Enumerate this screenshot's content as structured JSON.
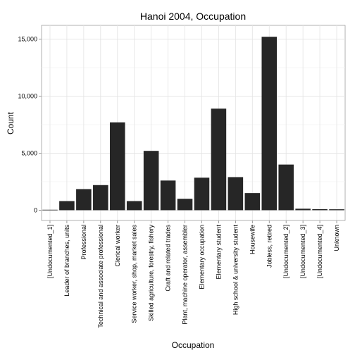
{
  "chart_data": {
    "type": "bar",
    "title": "Hanoi 2004, Occupation",
    "xlabel": "Occupation",
    "ylabel": "Count",
    "ylim": [
      -900,
      16200
    ],
    "yticks": [
      0,
      5000,
      10000,
      15000
    ],
    "ytick_labels": [
      "0",
      "5,000",
      "10,000",
      "15,000"
    ],
    "grid": true,
    "bar_color": "#262626",
    "categories": [
      "[Undocumented_1]",
      "Leader of branches, units",
      "Professional",
      "Technical and associate professional",
      "Clerical worker",
      "Service worker, shop, market sales",
      "Skilled agriculture, forestry, fishery",
      "Craft and related trades",
      "Plant, machine operator, assembler",
      "Elementary occupation",
      "Elementary student",
      "High school & university student",
      "Housewife",
      "Jobless, retired",
      "[Undocumented_2]",
      "[Undocumented_3]",
      "[Undocumented_4]",
      "Unknown"
    ],
    "values": [
      40,
      800,
      1850,
      2200,
      7700,
      800,
      5200,
      2600,
      1000,
      2850,
      8900,
      2900,
      1500,
      15200,
      4000,
      130,
      90,
      80
    ]
  }
}
